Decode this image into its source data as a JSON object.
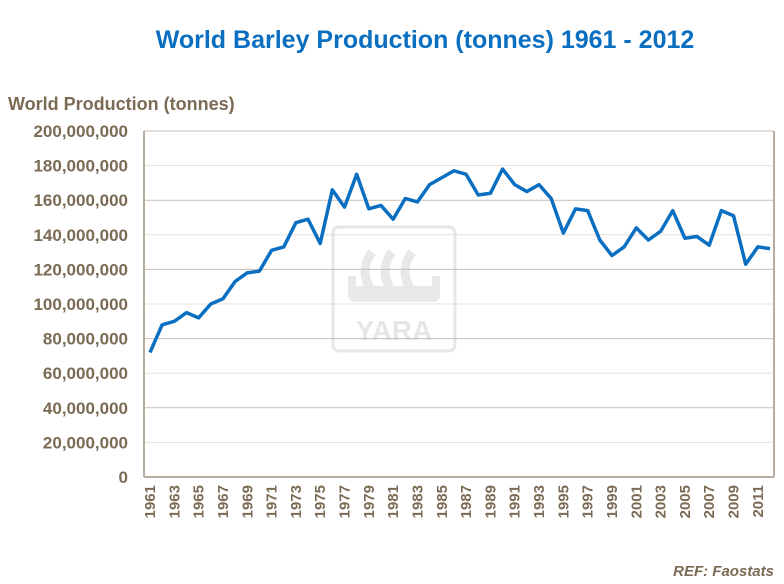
{
  "chart_data": {
    "type": "line",
    "title": "World Barley Production (tonnes) 1961 - 2012",
    "ylabel": "World Production (tonnes)",
    "xlabel": "",
    "source": "REF: Faostats",
    "watermark": "YARA",
    "ylim": [
      0,
      200000000
    ],
    "yticks": [
      "0",
      "20,000,000",
      "40,000,000",
      "60,000,000",
      "80,000,000",
      "100,000,000",
      "120,000,000",
      "140,000,000",
      "160,000,000",
      "180,000,000",
      "200,000,000"
    ],
    "xtick_labels": [
      "1961",
      "1963",
      "1965",
      "1967",
      "1969",
      "1971",
      "1973",
      "1975",
      "1977",
      "1979",
      "1981",
      "1983",
      "1985",
      "1987",
      "1989",
      "1991",
      "1993",
      "1995",
      "1997",
      "1999",
      "2001",
      "2003",
      "2005",
      "2007",
      "2009",
      "2011"
    ],
    "grid": true,
    "line_color": "#0b6fc1",
    "x": [
      1961,
      1962,
      1963,
      1964,
      1965,
      1966,
      1967,
      1968,
      1969,
      1970,
      1971,
      1972,
      1973,
      1974,
      1975,
      1976,
      1977,
      1978,
      1979,
      1980,
      1981,
      1982,
      1983,
      1984,
      1985,
      1986,
      1987,
      1988,
      1989,
      1990,
      1991,
      1992,
      1993,
      1994,
      1995,
      1996,
      1997,
      1998,
      1999,
      2000,
      2001,
      2002,
      2003,
      2004,
      2005,
      2006,
      2007,
      2008,
      2009,
      2010,
      2011,
      2012
    ],
    "values": [
      72000000,
      88000000,
      90000000,
      95000000,
      92000000,
      100000000,
      103000000,
      113000000,
      118000000,
      119000000,
      131000000,
      133000000,
      147000000,
      149000000,
      135000000,
      166000000,
      156000000,
      175000000,
      155000000,
      157000000,
      149000000,
      161000000,
      159000000,
      169000000,
      173000000,
      177000000,
      175000000,
      163000000,
      164000000,
      178000000,
      169000000,
      165000000,
      169000000,
      161000000,
      141000000,
      155000000,
      154000000,
      137000000,
      128000000,
      133000000,
      144000000,
      137000000,
      142000000,
      154000000,
      138000000,
      139000000,
      134000000,
      154000000,
      151000000,
      123000000,
      133000000,
      132000000
    ]
  }
}
